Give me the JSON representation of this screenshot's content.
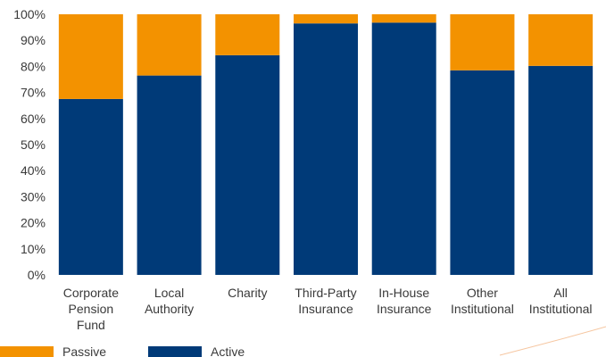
{
  "chart_data": {
    "type": "bar",
    "stacked": true,
    "normalized": true,
    "categories": [
      [
        "Corporate",
        "Pension",
        "Fund"
      ],
      [
        "Local",
        "Authority"
      ],
      [
        "Charity"
      ],
      [
        "Third-Party",
        "Insurance"
      ],
      [
        "In-House",
        "Insurance"
      ],
      [
        "Other",
        "Institutional"
      ],
      [
        "All",
        "Institutional"
      ]
    ],
    "series": [
      {
        "name": "Active",
        "color": "#003a78",
        "values": [
          67.5,
          76.5,
          84.3,
          96.5,
          96.8,
          78.5,
          80.2
        ]
      },
      {
        "name": "Passive",
        "color": "#f39200",
        "values": [
          32.5,
          23.5,
          15.7,
          3.5,
          3.2,
          21.5,
          19.8
        ]
      }
    ],
    "ylim": [
      0,
      100
    ],
    "yticks": [
      "0%",
      "10%",
      "20%",
      "30%",
      "40%",
      "50%",
      "60%",
      "70%",
      "80%",
      "90%",
      "100%"
    ],
    "grid": false,
    "legend": {
      "position": "bottom-left",
      "order": [
        "Passive",
        "Active"
      ]
    }
  }
}
